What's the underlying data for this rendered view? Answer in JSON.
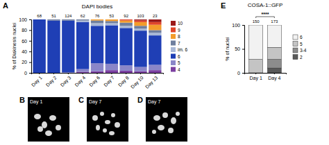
{
  "chart_data": [
    {
      "type": "bar",
      "stacked": true,
      "panel": "A",
      "title": "DAPI bodies",
      "y_label": "% of Diakinesis nuclei",
      "categories": [
        "Day 1",
        "Day 2",
        "Day 3",
        "Day 4",
        "Day 6",
        "Day 7",
        "Day 8",
        "Day 10",
        "Day 13"
      ],
      "counts": [
        68,
        51,
        124,
        62,
        76,
        53,
        92,
        103,
        23
      ],
      "ylim": [
        0,
        100
      ],
      "yticks": [
        0,
        20,
        40,
        60,
        80,
        100
      ],
      "series": [
        {
          "name": "4",
          "color": "#7b3fa0",
          "values": [
            0,
            0,
            0,
            2,
            3,
            5,
            4,
            3,
            5
          ]
        },
        {
          "name": "5",
          "color": "#8a86c8",
          "values": [
            0,
            0,
            1,
            5,
            15,
            12,
            10,
            8,
            10
          ]
        },
        {
          "name": "6",
          "color": "#1f3fb5",
          "values": [
            100,
            98,
            97,
            88,
            70,
            72,
            70,
            68,
            55
          ]
        },
        {
          "name": "im. 6",
          "color": "#a9b8d6",
          "values": [
            0,
            0,
            0,
            3,
            5,
            4,
            4,
            4,
            5
          ]
        },
        {
          "name": "7",
          "color": "#6f7f9e",
          "values": [
            0,
            2,
            2,
            2,
            5,
            4,
            6,
            5,
            5
          ]
        },
        {
          "name": "8",
          "color": "#f39c2b",
          "values": [
            0,
            0,
            0,
            0,
            2,
            3,
            4,
            7,
            10
          ]
        },
        {
          "name": "9",
          "color": "#e0452a",
          "values": [
            0,
            0,
            0,
            0,
            0,
            0,
            2,
            3,
            5
          ]
        },
        {
          "name": "10",
          "color": "#9b1a1a",
          "values": [
            0,
            0,
            0,
            0,
            0,
            0,
            0,
            2,
            5
          ]
        }
      ]
    },
    {
      "type": "bar",
      "stacked": true,
      "panel": "E",
      "title": "COSA-1::GFP",
      "y_label": "% of nuclei",
      "significance": "****",
      "categories": [
        "Day 1",
        "Day 4"
      ],
      "counts": [
        150,
        173
      ],
      "ylim": [
        0,
        100
      ],
      "yticks": [
        0,
        50,
        100
      ],
      "series": [
        {
          "name": "2",
          "color": "#595959",
          "values": [
            0,
            10
          ]
        },
        {
          "name": "3-4",
          "color": "#8c8c8c",
          "values": [
            0,
            18
          ]
        },
        {
          "name": "5",
          "color": "#c4c4c4",
          "values": [
            28,
            25
          ]
        },
        {
          "name": "6",
          "color": "#f2f2f2",
          "values": [
            72,
            47
          ]
        }
      ]
    }
  ],
  "images": [
    {
      "panel": "B",
      "label": "Day 1"
    },
    {
      "panel": "C",
      "label": "Day 7"
    },
    {
      "panel": "D",
      "label": "Day 7"
    }
  ]
}
